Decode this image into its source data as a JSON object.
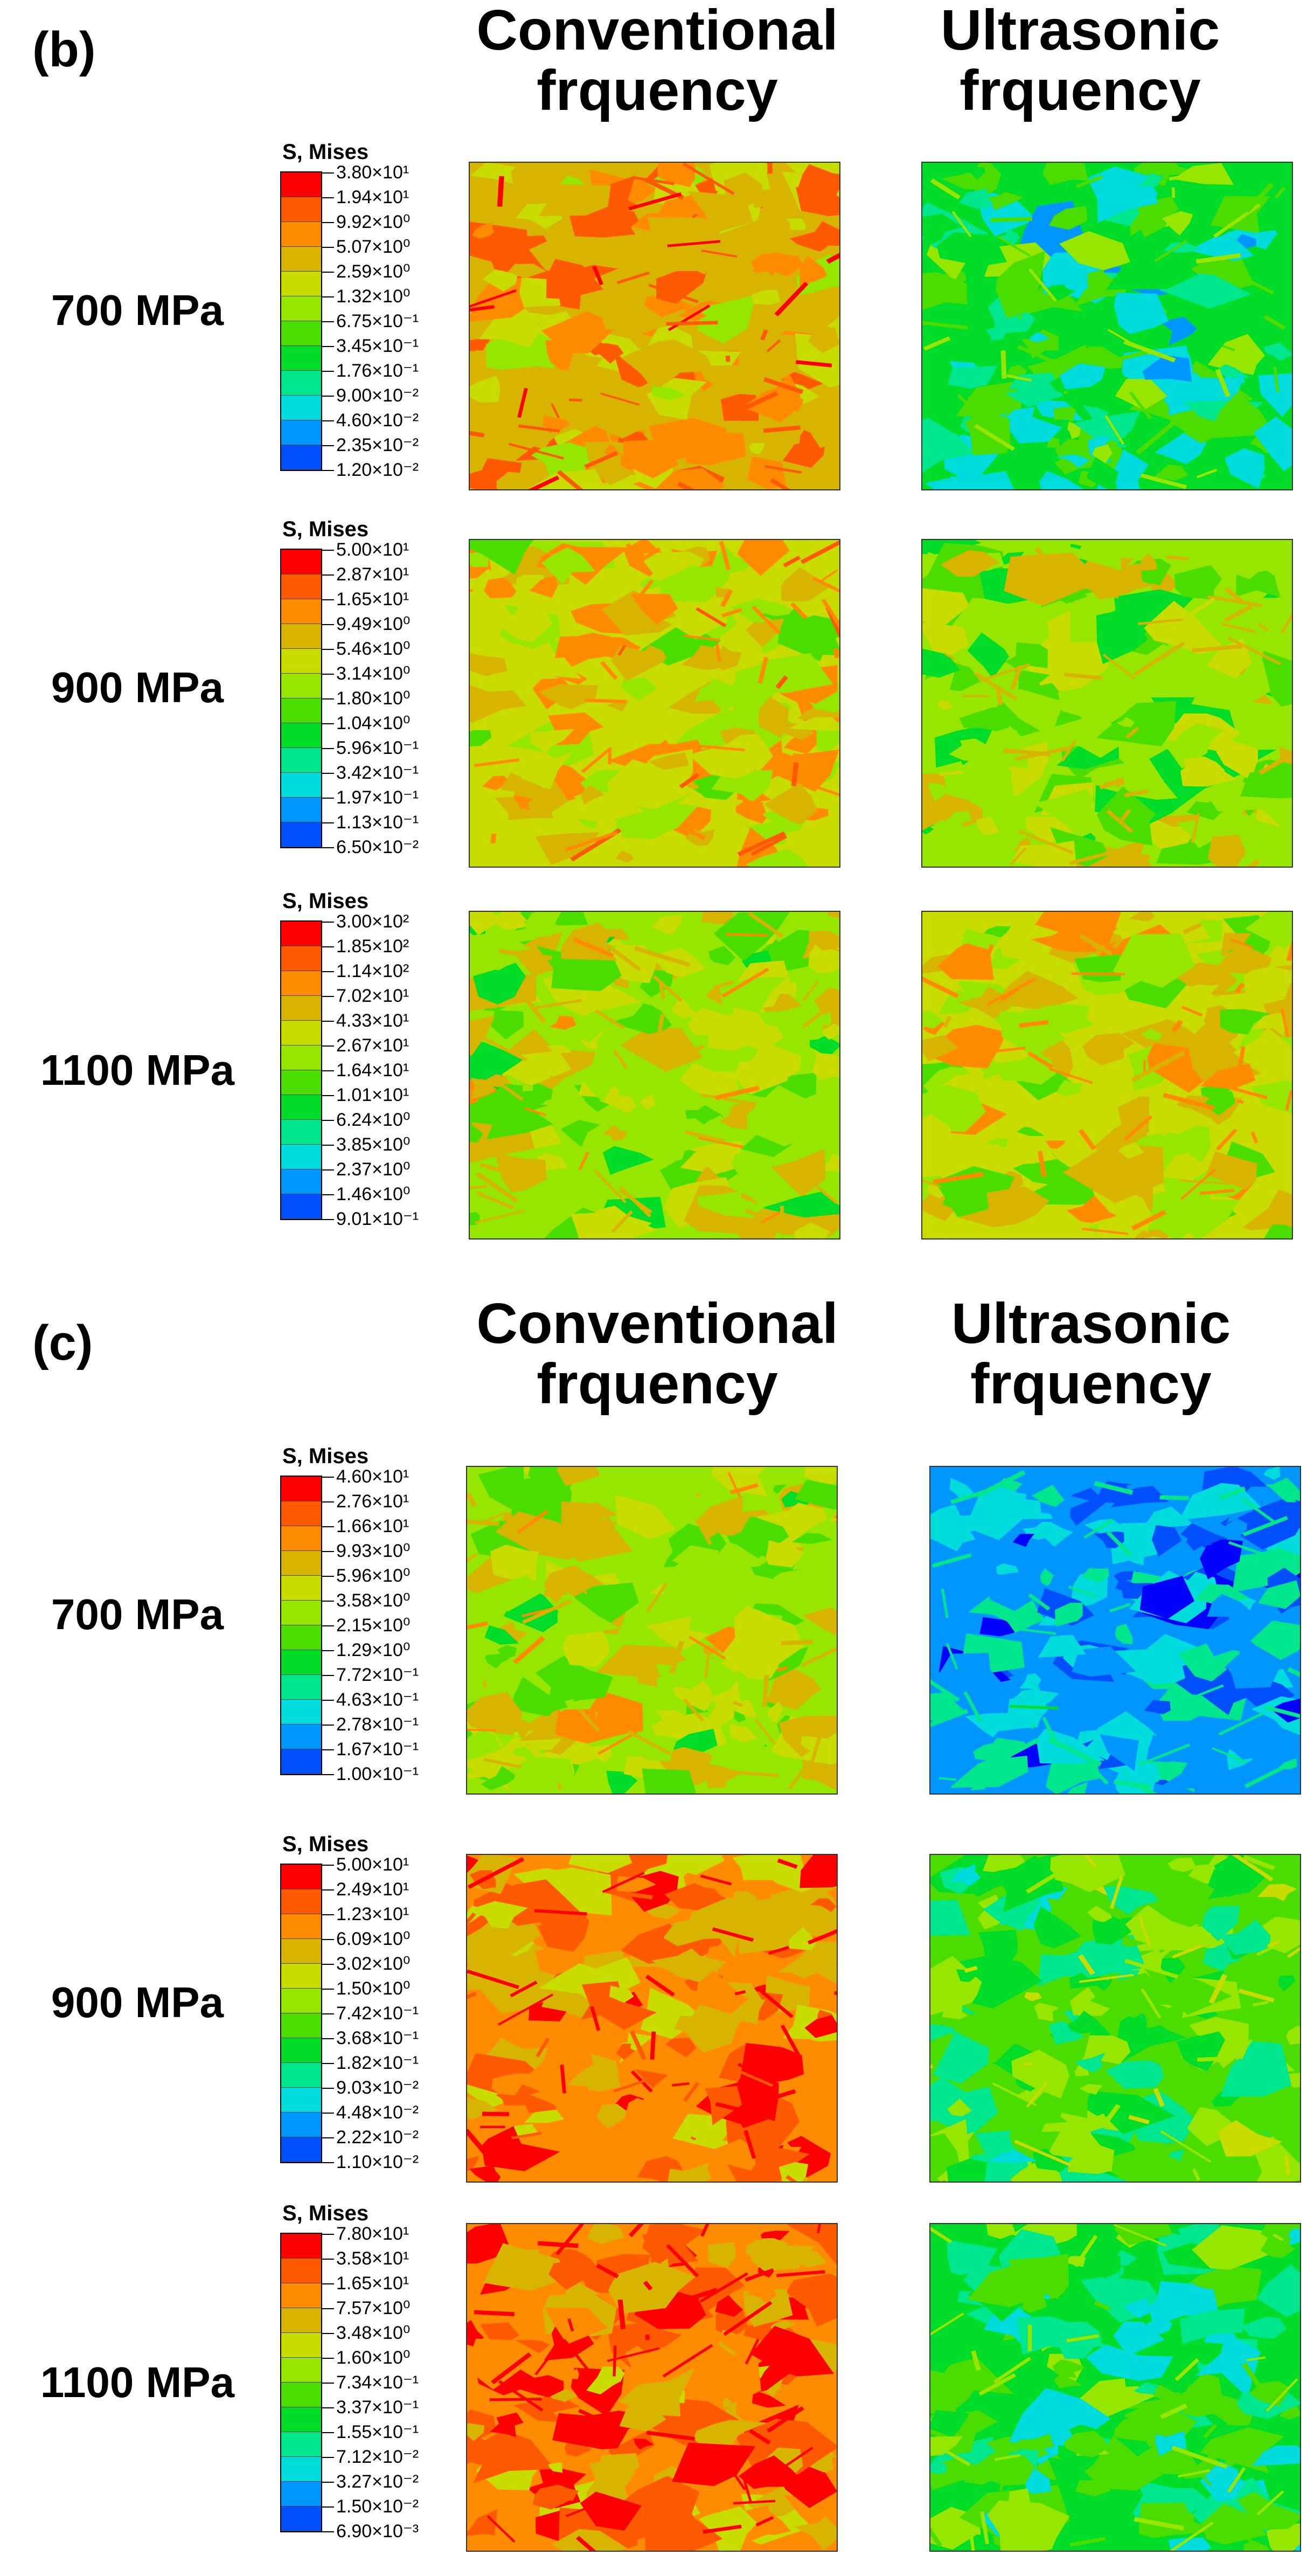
{
  "panels": [
    {
      "label": "(b)",
      "col_conventional": [
        "Conventional",
        "frquency"
      ],
      "col_ultrasonic": [
        "Ultrasonic",
        "frquency"
      ],
      "rows": [
        {
          "stress": "700 MPa",
          "legend_title": "S, Mises",
          "ticks": [
            "3.80×10¹",
            "1.94×10¹",
            "9.92×10⁰",
            "5.07×10⁰",
            "2.59×10⁰",
            "1.32×10⁰",
            "6.75×10⁻¹",
            "3.45×10⁻¹",
            "1.76×10⁻¹",
            "9.00×10⁻²",
            "4.60×10⁻²",
            "2.35×10⁻²",
            "1.20×10⁻²"
          ],
          "conventional_level": 0.78,
          "ultrasonic_level": 0.38
        },
        {
          "stress": "900 MPa",
          "legend_title": "S, Mises",
          "ticks": [
            "5.00×10¹",
            "2.87×10¹",
            "1.65×10¹",
            "9.49×10⁰",
            "5.46×10⁰",
            "3.14×10⁰",
            "1.80×10⁰",
            "1.04×10⁰",
            "5.96×10⁻¹",
            "3.42×10⁻¹",
            "1.97×10⁻¹",
            "1.13×10⁻¹",
            "6.50×10⁻²"
          ],
          "conventional_level": 0.7,
          "ultrasonic_level": 0.58
        },
        {
          "stress": "1100 MPa",
          "legend_title": "S, Mises",
          "ticks": [
            "3.00×10²",
            "1.85×10²",
            "1.14×10²",
            "7.02×10¹",
            "4.33×10¹",
            "2.67×10¹",
            "1.64×10¹",
            "1.01×10¹",
            "6.24×10⁰",
            "3.85×10⁰",
            "2.37×10⁰",
            "1.46×10⁰",
            "9.01×10⁻¹"
          ],
          "conventional_level": 0.62,
          "ultrasonic_level": 0.66
        }
      ]
    },
    {
      "label": "(c)",
      "col_conventional": [
        "Conventional",
        "frquency"
      ],
      "col_ultrasonic": [
        "Ultrasonic",
        "frquency"
      ],
      "rows": [
        {
          "stress": "700 MPa",
          "legend_title": "S, Mises",
          "ticks": [
            "4.60×10¹",
            "2.76×10¹",
            "1.66×10¹",
            "9.93×10⁰",
            "5.96×10⁰",
            "3.58×10⁰",
            "2.15×10⁰",
            "1.29×10⁰",
            "7.72×10⁻¹",
            "4.63×10⁻¹",
            "2.78×10⁻¹",
            "1.67×10⁻¹",
            "1.00×10⁻¹"
          ],
          "conventional_level": 0.62,
          "ultrasonic_level": 0.18
        },
        {
          "stress": "900 MPa",
          "legend_title": "S, Mises",
          "ticks": [
            "5.00×10¹",
            "2.49×10¹",
            "1.23×10¹",
            "6.09×10⁰",
            "3.02×10⁰",
            "1.50×10⁰",
            "7.42×10⁻¹",
            "3.68×10⁻¹",
            "1.82×10⁻¹",
            "9.03×10⁻²",
            "4.48×10⁻²",
            "2.22×10⁻²",
            "1.10×10⁻²"
          ],
          "conventional_level": 0.82,
          "ultrasonic_level": 0.46
        },
        {
          "stress": "1100 MPa",
          "legend_title": "S, Mises",
          "ticks": [
            "7.80×10¹",
            "3.58×10¹",
            "1.65×10¹",
            "7.57×10⁰",
            "3.48×10⁰",
            "1.60×10⁰",
            "7.34×10⁻¹",
            "3.37×10⁻¹",
            "1.55×10⁻¹",
            "7.12×10⁻²",
            "3.27×10⁻²",
            "1.50×10⁻²",
            "6.90×10⁻³"
          ],
          "conventional_level": 0.84,
          "ultrasonic_level": 0.4
        }
      ]
    }
  ],
  "colormap": [
    "#ff0000",
    "#ff5a00",
    "#ff8c00",
    "#d7b400",
    "#c8dc00",
    "#96e600",
    "#4bdc00",
    "#00dc28",
    "#00e68c",
    "#00dcdc",
    "#0096ff",
    "#0050ff",
    "#0000ff"
  ]
}
